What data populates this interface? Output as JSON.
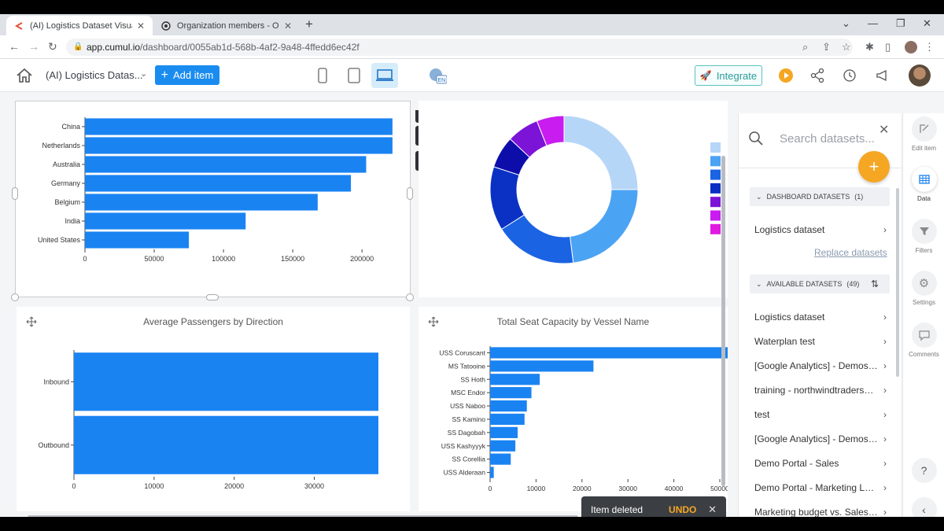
{
  "browser": {
    "tabs": [
      {
        "title": "(AI) Logistics Dataset Visualizatio",
        "active": true
      },
      {
        "title": "Organization members - OpenAI",
        "active": false
      }
    ],
    "url_host": "app.cumul.io",
    "url_path": "/dashboard/0055ab1d-568b-4af2-9a48-4ffedd6ec42f"
  },
  "header": {
    "title": "(AI) Logistics Datas...",
    "add_item": "Add item",
    "integrate": "Integrate",
    "lang": "EN"
  },
  "charts": {
    "countries": {
      "chart_data": {
        "type": "bar",
        "orientation": "horizontal",
        "categories": [
          "China",
          "Netherlands",
          "Australia",
          "Germany",
          "Belgium",
          "India",
          "United States"
        ],
        "values": [
          222000,
          222000,
          203000,
          192000,
          168000,
          116000,
          75000
        ],
        "xlim": [
          0,
          230000
        ],
        "xticks": [
          "0",
          "50000",
          "100000",
          "150000",
          "200000"
        ],
        "color": "#1a83f2"
      }
    },
    "donut": {
      "chart_data": {
        "type": "pie",
        "donut": true,
        "values": [
          25,
          23,
          18,
          14,
          7,
          7,
          6
        ],
        "colors": [
          "#b6d6f7",
          "#4ba3f4",
          "#1a63e3",
          "#0a31c4",
          "#0d0eaa",
          "#7c14d8",
          "#c81cf1"
        ],
        "legend_colors": [
          "#b6d6f7",
          "#4ba3f4",
          "#1a63e3",
          "#0a31c4",
          "#7c14d8",
          "#c81cf1",
          "#e019e0"
        ]
      }
    },
    "passengers": {
      "title": "Average Passengers by Direction",
      "chart_data": {
        "type": "bar",
        "orientation": "horizontal",
        "categories": [
          "Inbound",
          "Outbound"
        ],
        "values": [
          38000,
          38000
        ],
        "xlim": [
          0,
          38000
        ],
        "xticks": [
          "0",
          "10000",
          "20000",
          "30000"
        ],
        "color": "#1a83f2"
      }
    },
    "vessels": {
      "title": "Total Seat Capacity by Vessel Name",
      "chart_data": {
        "type": "bar",
        "orientation": "horizontal",
        "categories": [
          "USS Coruscant",
          "MS Tatooine",
          "SS Hoth",
          "MSC Endor",
          "USS Naboo",
          "SS Kamino",
          "SS Dagobah",
          "USS Kashyyyk",
          "SS Corellia",
          "USS Alderaan"
        ],
        "values": [
          52000,
          22500,
          10800,
          9000,
          8000,
          7500,
          6000,
          5500,
          4500,
          800
        ],
        "xlim": [
          0,
          50000
        ],
        "xticks": [
          "0",
          "10000",
          "20000",
          "30000",
          "40000",
          "50000"
        ],
        "color": "#1a83f2"
      }
    }
  },
  "toast": {
    "message": "Item deleted",
    "undo": "UNDO"
  },
  "datasets": {
    "search_placeholder": "Search datasets...",
    "dashboard_section": "DASHBOARD DATASETS",
    "dashboard_count": "(1)",
    "dashboard_items": [
      "Logistics dataset"
    ],
    "replace_link": "Replace datasets",
    "available_section": "AVAILABLE DATASETS",
    "available_count": "(49)",
    "available_items": [
      "Logistics dataset",
      "Waterplan test",
      "[Google Analytics] - Demoset...",
      "training - northwindtraders_c...",
      "test",
      "[Google Analytics] - Demoset...",
      "Demo Portal - Sales",
      "Demo Portal - Marketing Lea...",
      "Marketing budget vs. Sales o..."
    ]
  },
  "sidebar": {
    "items": [
      {
        "label": "Edit item",
        "icon": "edit-icon"
      },
      {
        "label": "Data",
        "icon": "table-icon"
      },
      {
        "label": "Filters",
        "icon": "filter-icon"
      },
      {
        "label": "Settings",
        "icon": "gear-icon"
      },
      {
        "label": "Comments",
        "icon": "comment-icon"
      }
    ],
    "help": "?"
  }
}
